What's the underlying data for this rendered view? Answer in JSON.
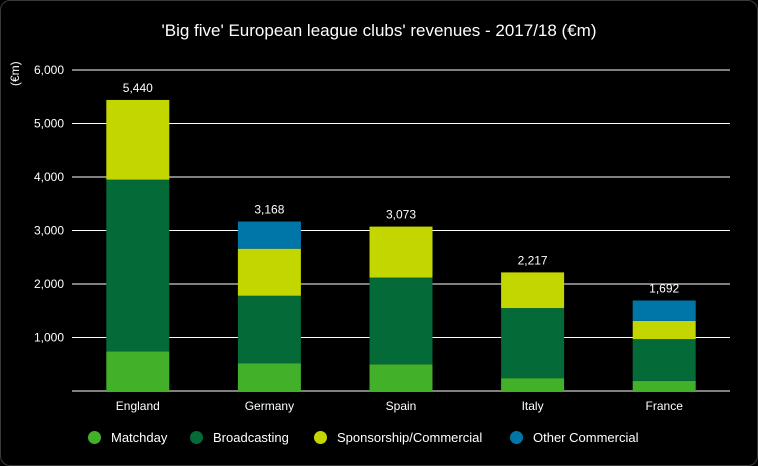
{
  "chart_data": {
    "type": "bar",
    "stacked": true,
    "title": "'Big five' European league clubs' revenues - 2017/18 (€m)",
    "ylabel": "(€m)",
    "xlabel": "",
    "ylim": [
      0,
      6000
    ],
    "yticks": [
      1000,
      2000,
      3000,
      4000,
      5000,
      6000
    ],
    "ytick_labels": [
      "1,000",
      "2,000",
      "3,000",
      "4,000",
      "5,000",
      "6,000"
    ],
    "grid": true,
    "legend_position": "bottom",
    "categories": [
      "England",
      "Germany",
      "Spain",
      "Italy",
      "France"
    ],
    "series": [
      {
        "name": "Matchday",
        "color": "#43b02a",
        "values": [
          740,
          520,
          500,
          240,
          190
        ]
      },
      {
        "name": "Broadcasting",
        "color": "#046a38",
        "values": [
          3210,
          1260,
          1620,
          1310,
          780
        ]
      },
      {
        "name": "Sponsorship/Commercial",
        "color": "#c4d600",
        "values": [
          1490,
          880,
          953,
          667,
          340
        ]
      },
      {
        "name": "Other Commercial",
        "color": "#0076a8",
        "values": [
          0,
          508,
          0,
          0,
          382
        ]
      }
    ],
    "totals": [
      5440,
      3168,
      3073,
      2217,
      1692
    ],
    "total_labels": [
      "5,440",
      "3,168",
      "3,073",
      "2,217",
      "1,692"
    ]
  },
  "colors": {
    "background": "#000000",
    "gridline": "#ffffff",
    "text": "#ffffff"
  }
}
